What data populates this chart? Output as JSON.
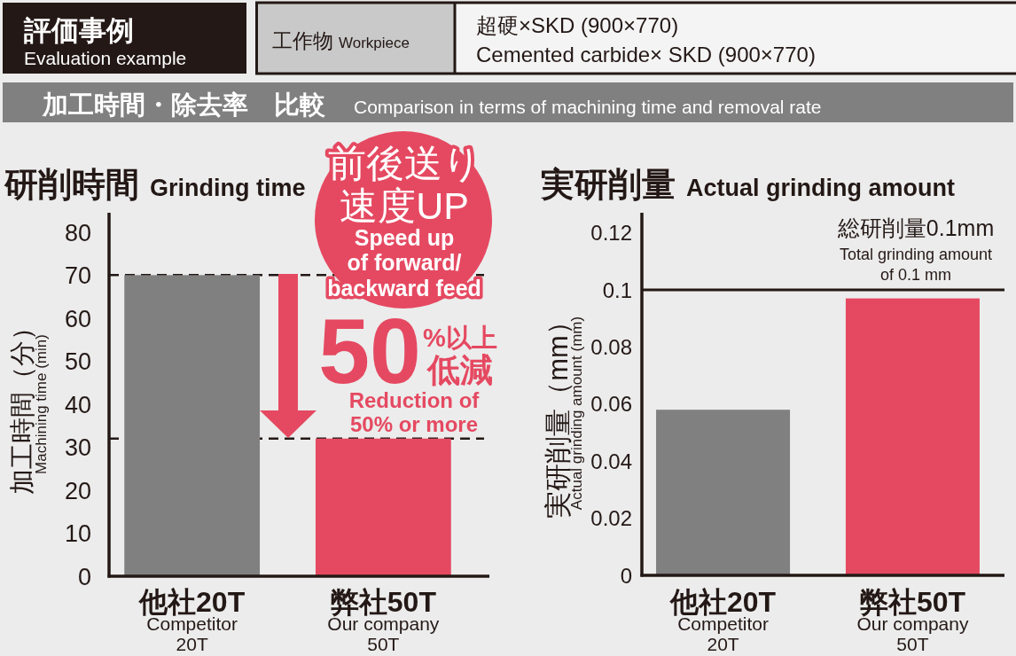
{
  "chart_data": [
    {
      "type": "other",
      "title": "加工時間・除去率　比較",
      "subtitle": "Comparison in terms of machining time and removal rate",
      "annotations": [
        "評価事例",
        "Evaluation example",
        "工作物",
        "Workpiece",
        "超硬×SKD (900×770)",
        "Cemented carbide× SKD (900×770)"
      ]
    },
    {
      "type": "bar",
      "title": "研削時間",
      "subtitle": "Grinding time",
      "ylabel": "加工時間（分）\nMachining time (min)",
      "categories": [
        "他社20T\nCompetitor\n20T",
        "弊社50T\nOur company\n50T"
      ],
      "values": [
        70,
        32
      ],
      "colors": [
        "#808080",
        "#e54961"
      ],
      "ylim": [
        0,
        84.5
      ],
      "yticks": [
        0,
        10,
        20,
        30,
        40,
        50,
        60,
        70,
        80
      ],
      "ref_lines": [
        {
          "axis": "y",
          "value": 70,
          "color": "#231815",
          "line_style": "dashed"
        },
        {
          "axis": "y",
          "value": 32,
          "color": "#231815",
          "line_style": "dashed"
        }
      ],
      "annotations": [
        "前後送り",
        "速度UP",
        "Speed up\nof forward/\nbackward feed",
        "50",
        "%以上",
        "低減",
        "Reduction of\n50% or more"
      ]
    },
    {
      "type": "bar",
      "title": "実研削量",
      "subtitle": "Actual grinding amount",
      "ylabel": "実研削量（mm）\nActual grinding amount (mm)",
      "categories": [
        "他社20T\nCompetitor\n20T",
        "弊社50T\nOur company\n50T"
      ],
      "values": [
        0.058,
        0.097
      ],
      "colors": [
        "#808080",
        "#e54961"
      ],
      "ylim": [
        0,
        0.127
      ],
      "yticks": [
        0,
        0.02,
        0.04,
        0.06,
        0.08,
        0.1,
        0.12
      ],
      "ref_lines": [
        {
          "axis": "y",
          "value": 0.1,
          "color": "#231815",
          "line_style": "solid",
          "label": "総研削量0.1mm\nTotal grinding amount\nof 0.1 mm"
        }
      ]
    }
  ]
}
